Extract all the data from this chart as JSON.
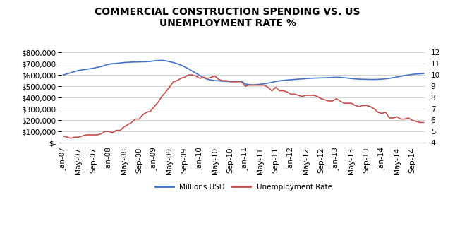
{
  "title": "COMMERCIAL CONSTRUCTION SPENDING VS. US\nUNEMPLOYMENT RATE %",
  "line1_label": "Millions USD",
  "line2_label": "Unemployment Rate",
  "line1_color": "#4472C4",
  "line2_color": "#C0504D",
  "background_color": "#FFFFFF",
  "ylim1": [
    0,
    800000
  ],
  "ylim2": [
    4,
    12
  ],
  "yticks1": [
    0,
    100000,
    200000,
    300000,
    400000,
    500000,
    600000,
    700000,
    800000
  ],
  "yticks2": [
    4,
    5,
    6,
    7,
    8,
    9,
    10,
    11,
    12
  ],
  "x_tick_positions": [
    0,
    4,
    8,
    12,
    16,
    20,
    24,
    28,
    32,
    36,
    40,
    44,
    48,
    52,
    56,
    60,
    64,
    68,
    72,
    76,
    80,
    84,
    88,
    92
  ],
  "x_labels": [
    "Jan-07",
    "May-07",
    "Sep-07",
    "Jan-08",
    "May-08",
    "Sep-08",
    "Jan-09",
    "May-09",
    "Sep-09",
    "Jan-10",
    "May-10",
    "Sep-10",
    "Jan-11",
    "May-11",
    "Sep-11",
    "Jan-12",
    "May-12",
    "Sep-12",
    "Jan-13",
    "May-13",
    "Sep-13",
    "Jan-14",
    "May-14",
    "Sep-14"
  ],
  "spending_monthly": [
    600000,
    610000,
    620000,
    630000,
    640000,
    645000,
    650000,
    655000,
    660000,
    668000,
    675000,
    685000,
    695000,
    700000,
    703000,
    706000,
    710000,
    712000,
    714000,
    715000,
    716000,
    717000,
    718000,
    720000,
    725000,
    728000,
    730000,
    725000,
    718000,
    710000,
    700000,
    688000,
    672000,
    655000,
    635000,
    615000,
    595000,
    575000,
    562000,
    555000,
    550000,
    548000,
    545000,
    543000,
    542000,
    542000,
    543000,
    544000,
    520000,
    515000,
    512000,
    515000,
    518000,
    522000,
    528000,
    535000,
    542000,
    548000,
    552000,
    555000,
    558000,
    560000,
    563000,
    565000,
    568000,
    570000,
    572000,
    573000,
    574000,
    575000,
    576000,
    578000,
    580000,
    578000,
    576000,
    572000,
    568000,
    565000,
    563000,
    562000,
    561000,
    560000,
    560000,
    561000,
    563000,
    566000,
    570000,
    576000,
    582000,
    588000,
    595000,
    600000,
    605000,
    608000,
    610000,
    612000
  ],
  "unemployment_monthly": [
    4.6,
    4.5,
    4.4,
    4.5,
    4.5,
    4.6,
    4.7,
    4.7,
    4.7,
    4.7,
    4.8,
    5.0,
    5.0,
    4.9,
    5.1,
    5.1,
    5.4,
    5.6,
    5.8,
    6.1,
    6.1,
    6.5,
    6.7,
    6.8,
    7.2,
    7.6,
    8.1,
    8.5,
    8.9,
    9.4,
    9.5,
    9.7,
    9.8,
    10.0,
    10.0,
    9.9,
    9.7,
    9.8,
    9.7,
    9.8,
    9.9,
    9.6,
    9.5,
    9.5,
    9.4,
    9.4,
    9.4,
    9.4,
    9.0,
    9.1,
    9.1,
    9.1,
    9.1,
    9.1,
    8.9,
    8.6,
    8.9,
    8.6,
    8.6,
    8.5,
    8.3,
    8.3,
    8.2,
    8.1,
    8.2,
    8.2,
    8.2,
    8.1,
    7.9,
    7.8,
    7.7,
    7.7,
    7.9,
    7.7,
    7.5,
    7.5,
    7.5,
    7.3,
    7.2,
    7.3,
    7.3,
    7.2,
    7.0,
    6.7,
    6.6,
    6.7,
    6.2,
    6.2,
    6.3,
    6.1,
    6.1,
    6.2,
    6.0,
    5.9,
    5.8,
    5.8
  ],
  "grid_color": "#C0C0C0",
  "title_fontsize": 10,
  "tick_fontsize": 7.5
}
